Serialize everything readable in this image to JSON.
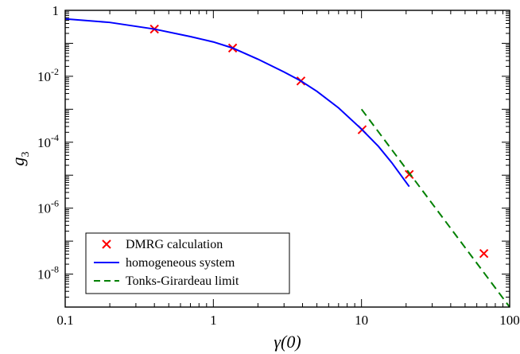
{
  "chart_data": {
    "type": "line",
    "xlabel": "γ(0)",
    "ylabel": "g3",
    "xscale": "log",
    "yscale": "log",
    "xlim": [
      0.1,
      100
    ],
    "ylim": [
      1e-09,
      1
    ],
    "grid": false,
    "legend_position": "bottom-left",
    "x_ticks": [
      {
        "value": 0.1,
        "label": "0.1"
      },
      {
        "value": 1,
        "label": "1"
      },
      {
        "value": 10,
        "label": "10"
      },
      {
        "value": 100,
        "label": "100"
      }
    ],
    "y_ticks": [
      {
        "value": 1,
        "base": "1",
        "exp": ""
      },
      {
        "value": 0.01,
        "base": "10",
        "exp": "-2"
      },
      {
        "value": 0.0001,
        "base": "10",
        "exp": "-4"
      },
      {
        "value": 1e-06,
        "base": "10",
        "exp": "-6"
      },
      {
        "value": 1e-08,
        "base": "10",
        "exp": "-8"
      }
    ],
    "series": [
      {
        "name": "DMRG  calculation",
        "kind": "markers",
        "marker": "x",
        "color": "#ff0000",
        "points": [
          {
            "x": 0.4,
            "y": 0.27
          },
          {
            "x": 1.35,
            "y": 0.072
          },
          {
            "x": 3.9,
            "y": 0.0072
          },
          {
            "x": 10.1,
            "y": 0.00024
          },
          {
            "x": 21,
            "y": 1.05e-05
          },
          {
            "x": 67,
            "y": 4.2e-08
          }
        ]
      },
      {
        "name": "homogeneous system",
        "kind": "line",
        "style": "solid",
        "color": "#0000ff",
        "points": [
          {
            "x": 0.1,
            "y": 0.55
          },
          {
            "x": 0.2,
            "y": 0.43
          },
          {
            "x": 0.4,
            "y": 0.27
          },
          {
            "x": 0.7,
            "y": 0.16
          },
          {
            "x": 1.0,
            "y": 0.11
          },
          {
            "x": 1.35,
            "y": 0.072
          },
          {
            "x": 2.0,
            "y": 0.033
          },
          {
            "x": 3.0,
            "y": 0.0135
          },
          {
            "x": 3.9,
            "y": 0.0072
          },
          {
            "x": 5.0,
            "y": 0.0035
          },
          {
            "x": 7.0,
            "y": 0.0011
          },
          {
            "x": 10.0,
            "y": 0.00025
          },
          {
            "x": 13.0,
            "y": 7.5e-05
          },
          {
            "x": 16.0,
            "y": 2.4e-05
          },
          {
            "x": 21.0,
            "y": 4.5e-06
          }
        ]
      },
      {
        "name": "Tonks-Girardeau limit",
        "kind": "line",
        "style": "dashed",
        "color": "#008000",
        "points": [
          {
            "x": 10,
            "y": 0.001
          },
          {
            "x": 100,
            "y": 1e-09
          }
        ]
      }
    ]
  }
}
